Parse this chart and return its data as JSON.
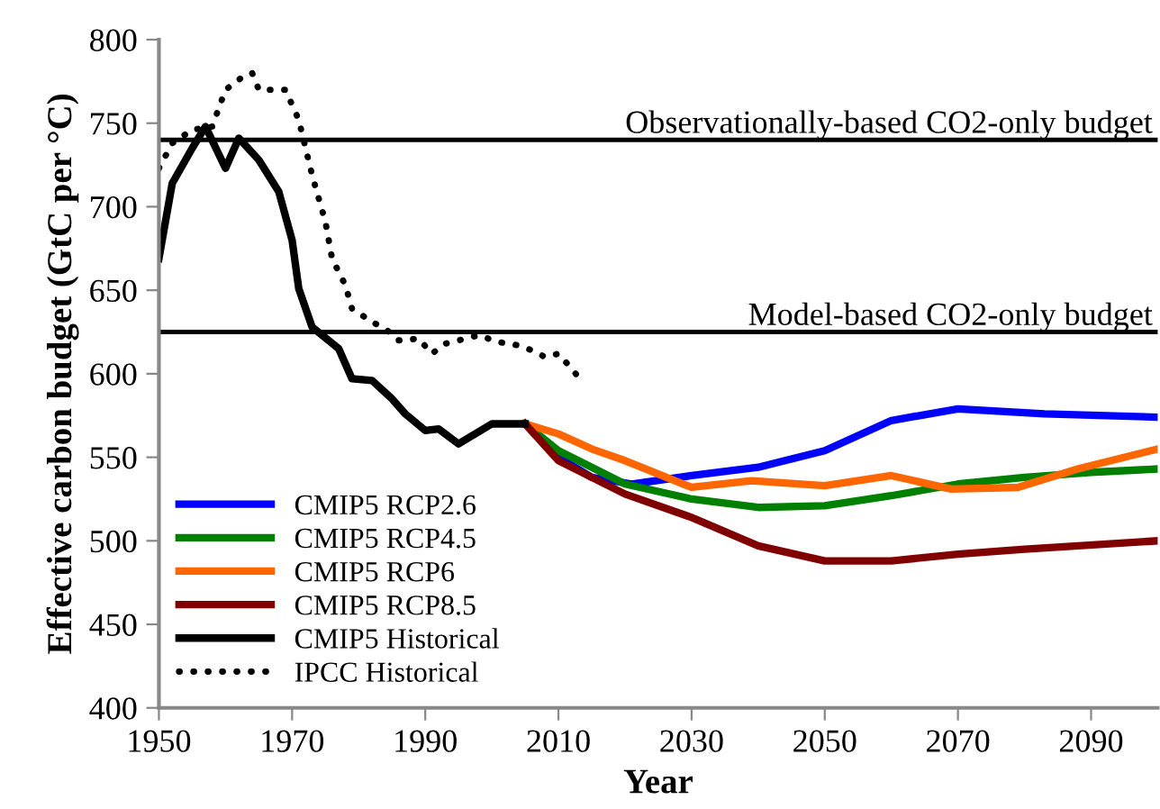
{
  "chart_data": {
    "type": "line",
    "xlabel": "Year",
    "ylabel": "Effective carbon budget (GtC per °C)",
    "xlim": [
      1950,
      2100
    ],
    "xticks": [
      1950,
      1970,
      1990,
      2010,
      2030,
      2050,
      2070,
      2090
    ],
    "ylim": [
      400,
      800
    ],
    "yticks": [
      400,
      450,
      500,
      550,
      600,
      650,
      700,
      750,
      800
    ],
    "grid": false,
    "legend": "bottom left",
    "marker": "none",
    "ref_lines": [
      {
        "axis": "y",
        "value": 740,
        "label": "Observationally-based CO2-only budget",
        "color": "#000000"
      },
      {
        "axis": "y",
        "value": 625,
        "label": "Model-based CO2-only budget",
        "color": "#000000"
      }
    ],
    "series": [
      {
        "name": "CMIP5 RCP2.6",
        "color": "#0000ff",
        "line_style": "solid",
        "x": [
          2010,
          2015,
          2021,
          2030,
          2040,
          2050,
          2060,
          2070,
          2083,
          2100
        ],
        "values": [
          550,
          538,
          534,
          539,
          544,
          554,
          572,
          579,
          576,
          574
        ]
      },
      {
        "name": "CMIP5 RCP4.5",
        "color": "#008000",
        "line_style": "solid",
        "x": [
          2005,
          2010,
          2020,
          2030,
          2040,
          2050,
          2060,
          2070,
          2080,
          2090,
          2100
        ],
        "values": [
          570,
          554,
          534,
          525,
          520,
          521,
          527,
          534,
          538,
          541,
          543
        ]
      },
      {
        "name": "CMIP5 RCP6",
        "color": "#ff6600",
        "line_style": "solid",
        "x": [
          2005,
          2010,
          2015,
          2020,
          2030,
          2039,
          2050,
          2060,
          2069,
          2079,
          2088,
          2100
        ],
        "values": [
          570,
          564,
          555,
          548,
          532,
          536,
          533,
          539,
          531,
          532,
          543,
          555
        ]
      },
      {
        "name": "CMIP5 RCP8.5",
        "color": "#800000",
        "line_style": "solid",
        "x": [
          2005,
          2010,
          2020,
          2030,
          2040,
          2050,
          2060,
          2070,
          2080,
          2100
        ],
        "values": [
          570,
          548,
          528,
          514,
          497,
          488,
          488,
          492,
          495,
          500
        ]
      },
      {
        "name": "CMIP5 Historical",
        "color": "#000000",
        "line_style": "solid",
        "x": [
          1950,
          1952,
          1955,
          1957,
          1960,
          1962,
          1965,
          1968,
          1970,
          1971,
          1973,
          1977,
          1979,
          1982,
          1985,
          1987,
          1990,
          1992,
          1995,
          2000,
          2005
        ],
        "values": [
          669,
          714,
          735,
          748,
          723,
          741,
          728,
          709,
          680,
          651,
          628,
          615,
          597,
          596,
          585,
          576,
          566,
          567,
          558,
          570,
          570
        ]
      },
      {
        "name": "IPCC Historical",
        "color": "#000000",
        "line_style": "dotted",
        "x": [
          1950,
          1952,
          1955,
          1958,
          1960,
          1963,
          1964,
          1965,
          1969,
          1971,
          1973,
          1975,
          1976,
          1978,
          1979,
          1982,
          1984,
          1986,
          1989,
          1991,
          1993,
          1996,
          1998,
          2001,
          2004,
          2006,
          2008,
          2010,
          2012,
          2013
        ],
        "values": [
          723,
          738,
          746,
          748,
          770,
          779,
          780,
          770,
          770,
          752,
          719,
          691,
          669,
          653,
          639,
          631,
          627,
          620,
          621,
          612,
          618,
          621,
          623,
          619,
          617,
          614,
          610,
          612,
          603,
          598
        ]
      }
    ]
  }
}
